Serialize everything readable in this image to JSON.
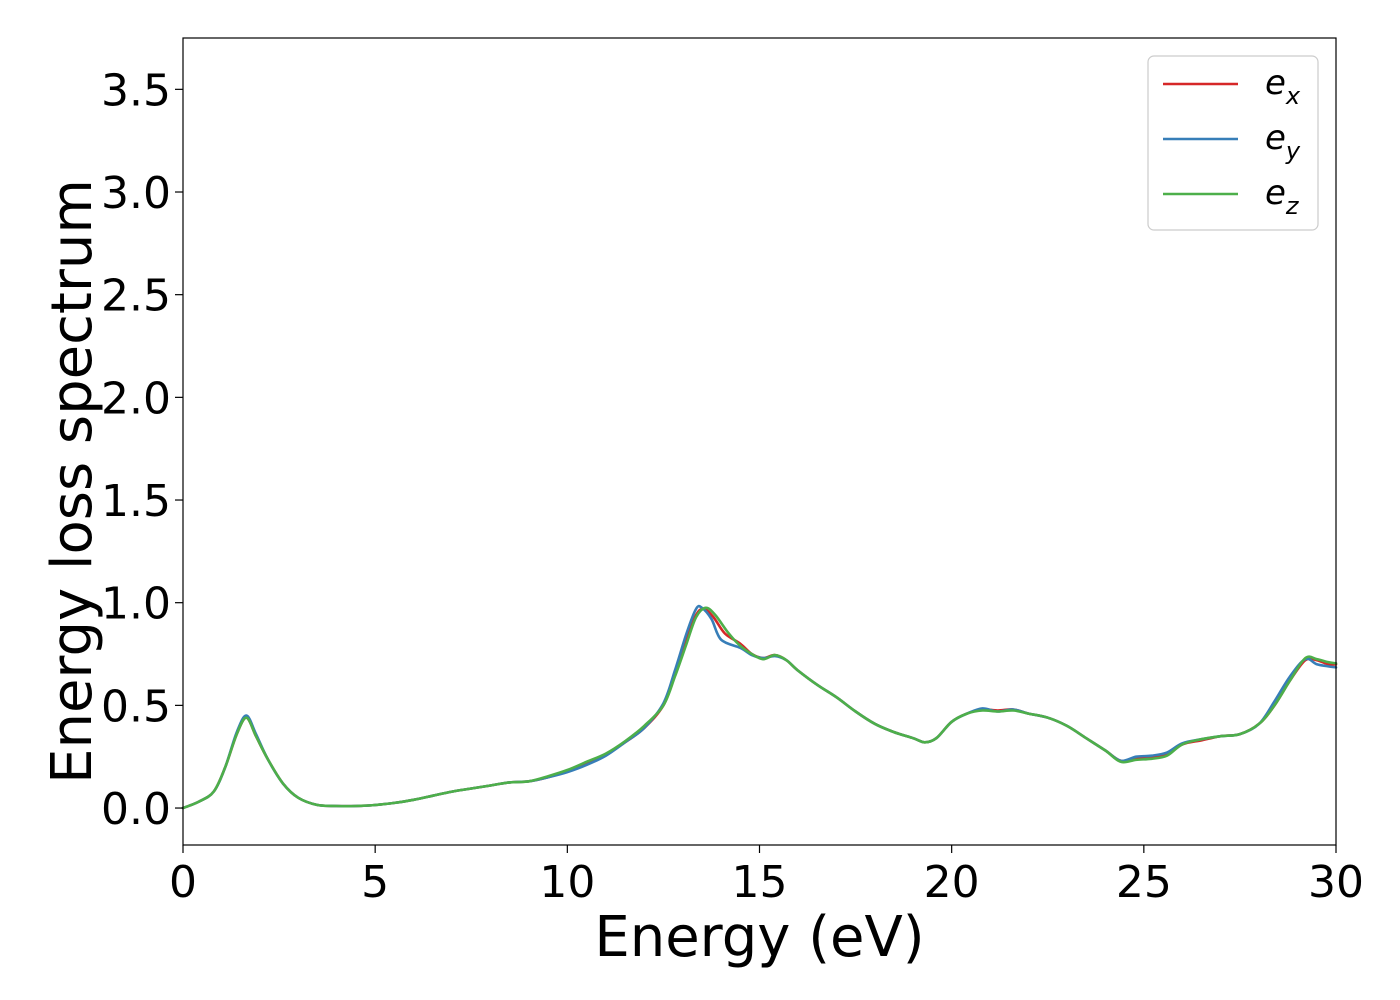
{
  "chart_data": {
    "type": "line",
    "title": "",
    "xlabel": "Energy (eV)",
    "ylabel": "Energy loss spectrum",
    "xlim": [
      0,
      30
    ],
    "ylim": [
      -0.18,
      3.75
    ],
    "xticks": [
      "0",
      "5",
      "10",
      "15",
      "20",
      "25",
      "30"
    ],
    "yticks": [
      "0.0",
      "0.5",
      "1.0",
      "1.5",
      "2.0",
      "2.5",
      "3.0",
      "3.5"
    ],
    "grid": false,
    "legend_position": "top-right",
    "series": [
      {
        "name": "e",
        "subscript": "x",
        "color": "#d62728",
        "points": [
          [
            0,
            0.0
          ],
          [
            0.4,
            0.03
          ],
          [
            0.8,
            0.08
          ],
          [
            1.1,
            0.2
          ],
          [
            1.4,
            0.36
          ],
          [
            1.65,
            0.44
          ],
          [
            1.9,
            0.35
          ],
          [
            2.2,
            0.24
          ],
          [
            2.6,
            0.12
          ],
          [
            3.0,
            0.05
          ],
          [
            3.5,
            0.015
          ],
          [
            4.0,
            0.01
          ],
          [
            4.5,
            0.01
          ],
          [
            5.0,
            0.015
          ],
          [
            5.5,
            0.025
          ],
          [
            6.0,
            0.04
          ],
          [
            6.5,
            0.06
          ],
          [
            7.0,
            0.08
          ],
          [
            7.5,
            0.095
          ],
          [
            8.0,
            0.11
          ],
          [
            8.5,
            0.125
          ],
          [
            9.0,
            0.13
          ],
          [
            9.5,
            0.15
          ],
          [
            10.0,
            0.18
          ],
          [
            10.5,
            0.22
          ],
          [
            11.0,
            0.26
          ],
          [
            11.5,
            0.32
          ],
          [
            12.0,
            0.39
          ],
          [
            12.5,
            0.5
          ],
          [
            12.8,
            0.65
          ],
          [
            13.1,
            0.82
          ],
          [
            13.35,
            0.94
          ],
          [
            13.55,
            0.97
          ],
          [
            13.8,
            0.93
          ],
          [
            14.1,
            0.85
          ],
          [
            14.5,
            0.8
          ],
          [
            14.8,
            0.75
          ],
          [
            15.1,
            0.73
          ],
          [
            15.4,
            0.745
          ],
          [
            15.7,
            0.72
          ],
          [
            16.0,
            0.67
          ],
          [
            16.5,
            0.6
          ],
          [
            17.0,
            0.54
          ],
          [
            17.5,
            0.47
          ],
          [
            18.0,
            0.41
          ],
          [
            18.5,
            0.37
          ],
          [
            19.0,
            0.34
          ],
          [
            19.3,
            0.32
          ],
          [
            19.6,
            0.34
          ],
          [
            20.0,
            0.42
          ],
          [
            20.4,
            0.46
          ],
          [
            20.8,
            0.48
          ],
          [
            21.2,
            0.475
          ],
          [
            21.6,
            0.48
          ],
          [
            22.0,
            0.46
          ],
          [
            22.5,
            0.44
          ],
          [
            23.0,
            0.4
          ],
          [
            23.5,
            0.34
          ],
          [
            24.0,
            0.28
          ],
          [
            24.4,
            0.23
          ],
          [
            24.8,
            0.24
          ],
          [
            25.2,
            0.245
          ],
          [
            25.6,
            0.26
          ],
          [
            26.0,
            0.31
          ],
          [
            26.5,
            0.33
          ],
          [
            27.0,
            0.35
          ],
          [
            27.5,
            0.36
          ],
          [
            28.0,
            0.41
          ],
          [
            28.4,
            0.5
          ],
          [
            28.8,
            0.62
          ],
          [
            29.2,
            0.72
          ],
          [
            29.5,
            0.72
          ],
          [
            29.8,
            0.7
          ],
          [
            30.0,
            0.7
          ]
        ]
      },
      {
        "name": "e",
        "subscript": "y",
        "color": "#377eb8",
        "points": [
          [
            0,
            0.0
          ],
          [
            0.4,
            0.03
          ],
          [
            0.8,
            0.08
          ],
          [
            1.1,
            0.2
          ],
          [
            1.4,
            0.37
          ],
          [
            1.65,
            0.45
          ],
          [
            1.9,
            0.36
          ],
          [
            2.2,
            0.24
          ],
          [
            2.6,
            0.12
          ],
          [
            3.0,
            0.05
          ],
          [
            3.5,
            0.015
          ],
          [
            4.0,
            0.01
          ],
          [
            4.5,
            0.01
          ],
          [
            5.0,
            0.015
          ],
          [
            5.5,
            0.025
          ],
          [
            6.0,
            0.04
          ],
          [
            6.5,
            0.06
          ],
          [
            7.0,
            0.08
          ],
          [
            7.5,
            0.095
          ],
          [
            8.0,
            0.11
          ],
          [
            8.5,
            0.125
          ],
          [
            9.0,
            0.13
          ],
          [
            9.5,
            0.15
          ],
          [
            10.0,
            0.175
          ],
          [
            10.5,
            0.21
          ],
          [
            11.0,
            0.255
          ],
          [
            11.5,
            0.32
          ],
          [
            12.0,
            0.39
          ],
          [
            12.5,
            0.51
          ],
          [
            12.8,
            0.67
          ],
          [
            13.1,
            0.85
          ],
          [
            13.35,
            0.97
          ],
          [
            13.5,
            0.975
          ],
          [
            13.75,
            0.92
          ],
          [
            14.0,
            0.82
          ],
          [
            14.5,
            0.78
          ],
          [
            14.8,
            0.745
          ],
          [
            15.1,
            0.73
          ],
          [
            15.4,
            0.74
          ],
          [
            15.7,
            0.72
          ],
          [
            16.0,
            0.67
          ],
          [
            16.5,
            0.6
          ],
          [
            17.0,
            0.54
          ],
          [
            17.5,
            0.47
          ],
          [
            18.0,
            0.41
          ],
          [
            18.5,
            0.37
          ],
          [
            19.0,
            0.34
          ],
          [
            19.3,
            0.32
          ],
          [
            19.6,
            0.34
          ],
          [
            20.0,
            0.42
          ],
          [
            20.4,
            0.46
          ],
          [
            20.8,
            0.485
          ],
          [
            21.2,
            0.47
          ],
          [
            21.6,
            0.48
          ],
          [
            22.0,
            0.46
          ],
          [
            22.5,
            0.44
          ],
          [
            23.0,
            0.4
          ],
          [
            23.5,
            0.34
          ],
          [
            24.0,
            0.28
          ],
          [
            24.4,
            0.23
          ],
          [
            24.8,
            0.25
          ],
          [
            25.2,
            0.255
          ],
          [
            25.6,
            0.27
          ],
          [
            26.0,
            0.315
          ],
          [
            26.5,
            0.335
          ],
          [
            27.0,
            0.35
          ],
          [
            27.5,
            0.36
          ],
          [
            28.0,
            0.41
          ],
          [
            28.4,
            0.52
          ],
          [
            28.8,
            0.64
          ],
          [
            29.2,
            0.725
          ],
          [
            29.5,
            0.7
          ],
          [
            29.8,
            0.69
          ],
          [
            30.0,
            0.685
          ]
        ]
      },
      {
        "name": "e",
        "subscript": "z",
        "color": "#4daf4a",
        "points": [
          [
            0,
            0.0
          ],
          [
            0.4,
            0.03
          ],
          [
            0.8,
            0.08
          ],
          [
            1.1,
            0.2
          ],
          [
            1.4,
            0.36
          ],
          [
            1.65,
            0.44
          ],
          [
            1.9,
            0.35
          ],
          [
            2.2,
            0.24
          ],
          [
            2.6,
            0.12
          ],
          [
            3.0,
            0.05
          ],
          [
            3.5,
            0.015
          ],
          [
            4.0,
            0.01
          ],
          [
            4.5,
            0.01
          ],
          [
            5.0,
            0.015
          ],
          [
            5.5,
            0.025
          ],
          [
            6.0,
            0.04
          ],
          [
            6.5,
            0.06
          ],
          [
            7.0,
            0.08
          ],
          [
            7.5,
            0.095
          ],
          [
            8.0,
            0.11
          ],
          [
            8.5,
            0.125
          ],
          [
            9.0,
            0.13
          ],
          [
            9.5,
            0.155
          ],
          [
            10.0,
            0.185
          ],
          [
            10.5,
            0.225
          ],
          [
            11.0,
            0.265
          ],
          [
            11.5,
            0.325
          ],
          [
            12.0,
            0.4
          ],
          [
            12.5,
            0.5
          ],
          [
            12.8,
            0.64
          ],
          [
            13.1,
            0.8
          ],
          [
            13.35,
            0.93
          ],
          [
            13.6,
            0.975
          ],
          [
            13.85,
            0.94
          ],
          [
            14.2,
            0.85
          ],
          [
            14.5,
            0.79
          ],
          [
            14.8,
            0.75
          ],
          [
            15.1,
            0.725
          ],
          [
            15.4,
            0.745
          ],
          [
            15.7,
            0.72
          ],
          [
            16.0,
            0.67
          ],
          [
            16.5,
            0.6
          ],
          [
            17.0,
            0.54
          ],
          [
            17.5,
            0.47
          ],
          [
            18.0,
            0.41
          ],
          [
            18.5,
            0.37
          ],
          [
            19.0,
            0.34
          ],
          [
            19.3,
            0.32
          ],
          [
            19.6,
            0.34
          ],
          [
            20.0,
            0.42
          ],
          [
            20.4,
            0.46
          ],
          [
            20.8,
            0.475
          ],
          [
            21.2,
            0.47
          ],
          [
            21.6,
            0.475
          ],
          [
            22.0,
            0.46
          ],
          [
            22.5,
            0.44
          ],
          [
            23.0,
            0.4
          ],
          [
            23.5,
            0.34
          ],
          [
            24.0,
            0.28
          ],
          [
            24.4,
            0.225
          ],
          [
            24.8,
            0.235
          ],
          [
            25.2,
            0.24
          ],
          [
            25.6,
            0.255
          ],
          [
            26.0,
            0.31
          ],
          [
            26.5,
            0.335
          ],
          [
            27.0,
            0.35
          ],
          [
            27.5,
            0.36
          ],
          [
            28.0,
            0.41
          ],
          [
            28.4,
            0.5
          ],
          [
            28.8,
            0.62
          ],
          [
            29.2,
            0.73
          ],
          [
            29.5,
            0.725
          ],
          [
            29.8,
            0.71
          ],
          [
            30.0,
            0.705
          ]
        ]
      }
    ]
  }
}
